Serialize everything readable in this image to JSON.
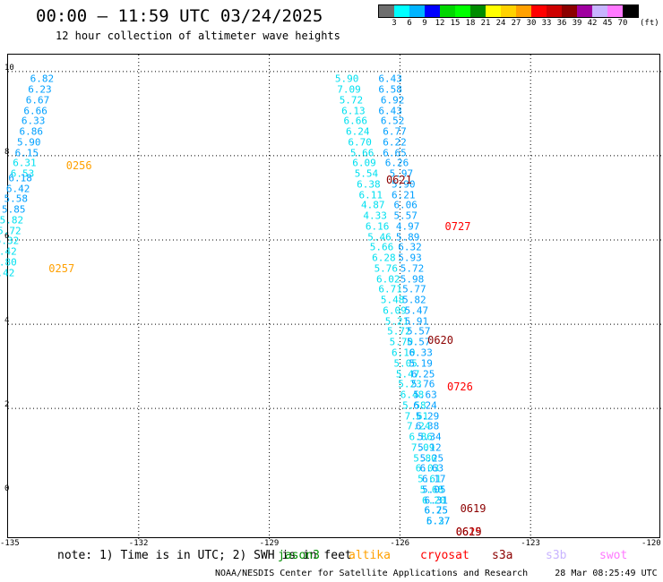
{
  "header": {
    "title": "00:00 – 11:59 UTC 03/24/2025",
    "subtitle": "12 hour collection of altimeter wave heights"
  },
  "colorbar": {
    "colors": [
      "#6e6e6e",
      "#00ffff",
      "#00b4ff",
      "#0000ff",
      "#00d700",
      "#00ff00",
      "#008c00",
      "#ffff00",
      "#ffd200",
      "#ffa000",
      "#ff0000",
      "#cd0000",
      "#8c0000",
      "#a000a0",
      "#c8b4ff",
      "#ff78ff",
      "#000000"
    ],
    "labels": [
      "3",
      "6",
      "9",
      "12",
      "15",
      "18",
      "21",
      "24",
      "27",
      "30",
      "33",
      "36",
      "39",
      "42",
      "45",
      "70"
    ],
    "unit": "(ft)"
  },
  "map": {
    "lon_ticks": [
      "-135",
      "-132",
      "-129",
      "-126",
      "-123",
      "-120"
    ],
    "lat_ticks": [
      "0",
      "2",
      "4",
      "6",
      "8",
      "10"
    ]
  },
  "track_data": {
    "colors": {
      "cyan": "#00e0f0",
      "blue": "#00a0ff"
    },
    "tracks": [
      {
        "color": "blue",
        "points": [
          {
            "lon": -134.2,
            "lat": 9.8,
            "v": "6.82"
          },
          {
            "lon": -134.25,
            "lat": 9.55,
            "v": "6.23"
          },
          {
            "lon": -134.3,
            "lat": 9.3,
            "v": "6.67"
          },
          {
            "lon": -134.35,
            "lat": 9.05,
            "v": "6.66"
          },
          {
            "lon": -134.4,
            "lat": 8.8,
            "v": "6.33"
          },
          {
            "lon": -134.45,
            "lat": 8.55,
            "v": "6.86"
          },
          {
            "lon": -134.5,
            "lat": 8.3,
            "v": "5.90"
          },
          {
            "lon": -134.55,
            "lat": 8.05,
            "v": "6.15"
          }
        ]
      },
      {
        "color": "cyan",
        "points": [
          {
            "lon": -134.6,
            "lat": 7.8,
            "v": "6.31"
          },
          {
            "lon": -134.65,
            "lat": 7.55,
            "v": "6.53"
          }
        ]
      },
      {
        "color": "blue",
        "points": [
          {
            "lon": -134.7,
            "lat": 7.45,
            "v": "6.18"
          },
          {
            "lon": -134.75,
            "lat": 7.2,
            "v": "6.42"
          },
          {
            "lon": -134.8,
            "lat": 6.95,
            "v": "5.58"
          },
          {
            "lon": -134.85,
            "lat": 6.7,
            "v": "5.85"
          }
        ]
      },
      {
        "color": "cyan",
        "points": [
          {
            "lon": -134.9,
            "lat": 6.45,
            "v": "5.82"
          },
          {
            "lon": -134.95,
            "lat": 6.2,
            "v": "5.72"
          },
          {
            "lon": -135.0,
            "lat": 5.95,
            "v": "5.32"
          },
          {
            "lon": -135.05,
            "lat": 5.7,
            "v": "5.42"
          },
          {
            "lon": -135.05,
            "lat": 5.45,
            "v": "5.80"
          },
          {
            "lon": -135.1,
            "lat": 5.2,
            "v": "5.42"
          }
        ]
      },
      {
        "color": "blue",
        "points": [
          {
            "lon": -126.2,
            "lat": 9.8,
            "v": "6.43"
          },
          {
            "lon": -126.2,
            "lat": 9.55,
            "v": "6.58"
          },
          {
            "lon": -126.15,
            "lat": 9.3,
            "v": "6.92"
          },
          {
            "lon": -126.2,
            "lat": 9.05,
            "v": "6.43"
          },
          {
            "lon": -126.15,
            "lat": 8.8,
            "v": "6.52"
          },
          {
            "lon": -126.1,
            "lat": 8.55,
            "v": "6.77"
          },
          {
            "lon": -126.1,
            "lat": 8.3,
            "v": "6.22"
          },
          {
            "lon": -126.1,
            "lat": 8.05,
            "v": "6.65"
          },
          {
            "lon": -126.05,
            "lat": 7.8,
            "v": "6.26"
          }
        ]
      },
      {
        "color": "cyan",
        "points": [
          {
            "lon": -127.2,
            "lat": 9.8,
            "v": "5.90"
          },
          {
            "lon": -127.15,
            "lat": 9.55,
            "v": "7.09"
          },
          {
            "lon": -127.1,
            "lat": 9.3,
            "v": "5.72"
          },
          {
            "lon": -127.05,
            "lat": 9.05,
            "v": "6.13"
          },
          {
            "lon": -127.0,
            "lat": 8.8,
            "v": "6.66"
          },
          {
            "lon": -126.95,
            "lat": 8.55,
            "v": "6.24"
          },
          {
            "lon": -126.9,
            "lat": 8.3,
            "v": "6.70"
          },
          {
            "lon": -126.85,
            "lat": 8.05,
            "v": "5.66"
          },
          {
            "lon": -126.8,
            "lat": 7.8,
            "v": "6.09"
          },
          {
            "lon": -126.75,
            "lat": 7.55,
            "v": "5.54"
          },
          {
            "lon": -126.7,
            "lat": 7.3,
            "v": "6.38"
          },
          {
            "lon": -126.65,
            "lat": 7.05,
            "v": "6.11"
          },
          {
            "lon": -126.6,
            "lat": 6.8,
            "v": "4.87"
          },
          {
            "lon": -126.55,
            "lat": 6.55,
            "v": "4.33"
          },
          {
            "lon": -126.5,
            "lat": 6.3,
            "v": "6.16"
          },
          {
            "lon": -126.45,
            "lat": 6.05,
            "v": "5.46"
          },
          {
            "lon": -126.4,
            "lat": 5.8,
            "v": "5.66"
          },
          {
            "lon": -126.35,
            "lat": 5.55,
            "v": "6.28"
          },
          {
            "lon": -126.3,
            "lat": 5.3,
            "v": "5.76"
          },
          {
            "lon": -126.25,
            "lat": 5.05,
            "v": "6.02"
          },
          {
            "lon": -126.2,
            "lat": 4.8,
            "v": "6.71"
          },
          {
            "lon": -126.15,
            "lat": 4.55,
            "v": "5.48"
          },
          {
            "lon": -126.1,
            "lat": 4.3,
            "v": "6.09"
          },
          {
            "lon": -126.05,
            "lat": 4.05,
            "v": "5.21"
          },
          {
            "lon": -126.0,
            "lat": 3.8,
            "v": "5.72"
          },
          {
            "lon": -125.95,
            "lat": 3.55,
            "v": "5.70"
          },
          {
            "lon": -125.9,
            "lat": 3.3,
            "v": "6.10"
          },
          {
            "lon": -125.85,
            "lat": 3.05,
            "v": "5.05"
          },
          {
            "lon": -125.8,
            "lat": 2.8,
            "v": "5.47"
          },
          {
            "lon": -125.75,
            "lat": 2.55,
            "v": "5.23"
          },
          {
            "lon": -125.7,
            "lat": 2.3,
            "v": "6.48"
          },
          {
            "lon": -125.65,
            "lat": 2.05,
            "v": "5.58"
          },
          {
            "lon": -125.6,
            "lat": 1.8,
            "v": "7.61"
          },
          {
            "lon": -125.55,
            "lat": 1.55,
            "v": "7.24"
          },
          {
            "lon": -125.5,
            "lat": 1.3,
            "v": "6.86"
          },
          {
            "lon": -125.45,
            "lat": 1.05,
            "v": "7.09"
          },
          {
            "lon": -125.4,
            "lat": 0.8,
            "v": "5.80"
          },
          {
            "lon": -125.35,
            "lat": 0.55,
            "v": "6.03"
          },
          {
            "lon": -125.3,
            "lat": 0.3,
            "v": "5.61"
          },
          {
            "lon": -125.25,
            "lat": 0.05,
            "v": "5.68"
          },
          {
            "lon": -125.2,
            "lat": -0.2,
            "v": "6.20"
          },
          {
            "lon": -125.15,
            "lat": -0.45,
            "v": "6.75"
          },
          {
            "lon": -125.1,
            "lat": -0.7,
            "v": "5.27"
          }
        ]
      },
      {
        "color": "blue",
        "points": [
          {
            "lon": -125.95,
            "lat": 7.55,
            "v": "5.97"
          },
          {
            "lon": -125.9,
            "lat": 7.3,
            "v": "5.90"
          },
          {
            "lon": -125.9,
            "lat": 7.05,
            "v": "6.21"
          },
          {
            "lon": -125.85,
            "lat": 6.8,
            "v": "6.06"
          },
          {
            "lon": -125.85,
            "lat": 6.55,
            "v": "5.57"
          },
          {
            "lon": -125.8,
            "lat": 6.3,
            "v": "4.97"
          },
          {
            "lon": -125.8,
            "lat": 6.05,
            "v": "5.89"
          },
          {
            "lon": -125.75,
            "lat": 5.8,
            "v": "6.32"
          },
          {
            "lon": -125.75,
            "lat": 5.55,
            "v": "5.93"
          },
          {
            "lon": -125.7,
            "lat": 5.3,
            "v": "5.72"
          },
          {
            "lon": -125.7,
            "lat": 5.05,
            "v": "5.98"
          },
          {
            "lon": -125.65,
            "lat": 4.8,
            "v": "5.77"
          },
          {
            "lon": -125.65,
            "lat": 4.55,
            "v": "5.82"
          },
          {
            "lon": -125.6,
            "lat": 4.3,
            "v": "5.47"
          },
          {
            "lon": -125.6,
            "lat": 4.05,
            "v": "5.91"
          },
          {
            "lon": -125.55,
            "lat": 3.8,
            "v": "5.57"
          },
          {
            "lon": -125.55,
            "lat": 3.55,
            "v": "5.57"
          },
          {
            "lon": -125.5,
            "lat": 3.3,
            "v": "6.33"
          },
          {
            "lon": -125.5,
            "lat": 3.05,
            "v": "5.19"
          },
          {
            "lon": -125.45,
            "lat": 2.8,
            "v": "6.25"
          },
          {
            "lon": -125.45,
            "lat": 2.55,
            "v": "5.76"
          },
          {
            "lon": -125.4,
            "lat": 2.3,
            "v": "5.63"
          },
          {
            "lon": -125.4,
            "lat": 2.05,
            "v": "6.24"
          },
          {
            "lon": -125.35,
            "lat": 1.8,
            "v": "5.29"
          },
          {
            "lon": -125.35,
            "lat": 1.55,
            "v": "6.38"
          },
          {
            "lon": -125.3,
            "lat": 1.3,
            "v": "5.34"
          },
          {
            "lon": -125.3,
            "lat": 1.05,
            "v": "5.12"
          },
          {
            "lon": -125.25,
            "lat": 0.8,
            "v": "5.25"
          },
          {
            "lon": -125.25,
            "lat": 0.55,
            "v": "6.63"
          },
          {
            "lon": -125.2,
            "lat": 0.3,
            "v": "6.17"
          },
          {
            "lon": -125.2,
            "lat": 0.05,
            "v": "5.05"
          },
          {
            "lon": -125.15,
            "lat": -0.2,
            "v": "6.31"
          },
          {
            "lon": -125.15,
            "lat": -0.45,
            "v": "6.25"
          },
          {
            "lon": -125.1,
            "lat": -0.7,
            "v": "6.37"
          }
        ]
      }
    ],
    "time_labels": [
      {
        "text": "0256",
        "lon": -133.35,
        "lat": 7.75,
        "sat": "altika"
      },
      {
        "text": "0257",
        "lon": -133.75,
        "lat": 5.3,
        "sat": "altika"
      },
      {
        "text": "0621",
        "lon": -126.0,
        "lat": 7.4,
        "sat": "s3a"
      },
      {
        "text": "0727",
        "lon": -124.65,
        "lat": 6.3,
        "sat": "cryosat"
      },
      {
        "text": "0620",
        "lon": -125.05,
        "lat": 3.6,
        "sat": "s3a"
      },
      {
        "text": "0726",
        "lon": -124.6,
        "lat": 2.5,
        "sat": "cryosat"
      },
      {
        "text": "0619",
        "lon": -124.3,
        "lat": -0.4,
        "sat": "s3a"
      },
      {
        "text": "0625",
        "lon": -124.4,
        "lat": -0.95,
        "sat": "cryosat"
      },
      {
        "text": "0619",
        "lon": -124.4,
        "lat": -0.95,
        "sat": "s3a"
      }
    ]
  },
  "footer": {
    "note": "note: 1) Time is in UTC; 2) SWH is in feet",
    "credit": "NOAA/NESDIS Center for Satellite Applications and Research",
    "timestamp": "28 Mar 08:25:49 UTC 2025"
  },
  "satellites": [
    {
      "name": "jason3",
      "color": "#008c00"
    },
    {
      "name": "altika",
      "color": "#ffa000"
    },
    {
      "name": "cryosat",
      "color": "#ff0000"
    },
    {
      "name": "s3a",
      "color": "#8c0000"
    },
    {
      "name": "s3b",
      "color": "#c8b4ff"
    },
    {
      "name": "swot",
      "color": "#ff78ff"
    }
  ]
}
